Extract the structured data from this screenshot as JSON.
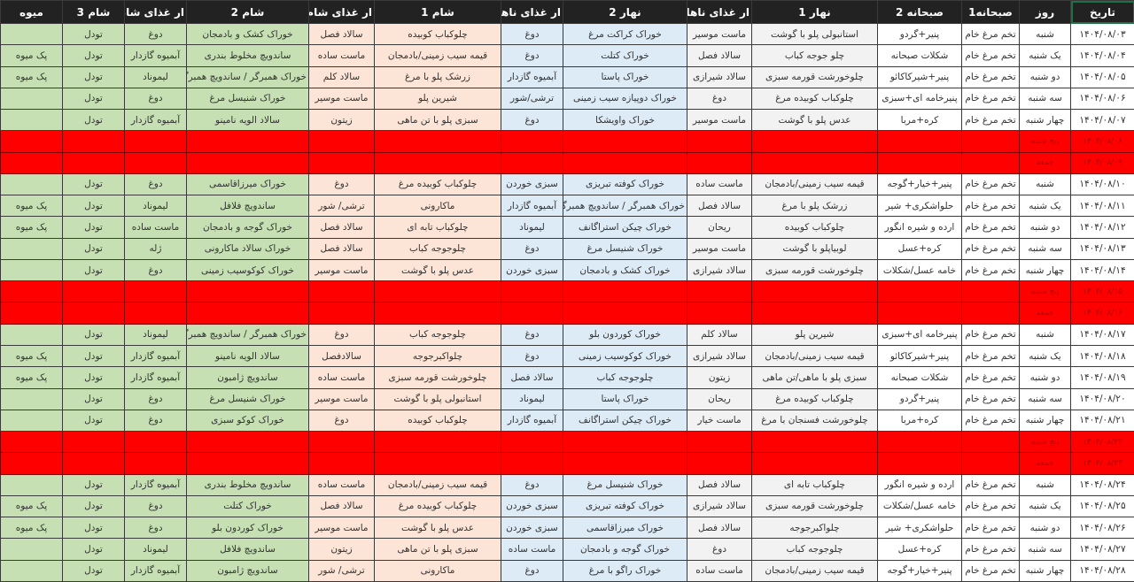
{
  "headers": [
    "تاریخ",
    "روز",
    "صبحانه1",
    "صبحانه 2",
    "نهار 1",
    "ار غذای ناهار",
    "نهار 2",
    "ار غذای ناهار",
    "شام 1",
    "ار غذای شام",
    "شام 2",
    "ار غذای شام",
    "شام 3",
    "میوه"
  ],
  "colors": {
    "header_bg": "#222222",
    "off_day": "#ff0000",
    "lunch1": "#f2f2f2",
    "lunch2": "#ddebf7",
    "dinner1": "#fce4d6",
    "dinner2": "#c6e0b4"
  },
  "rows": [
    [
      "۱۴۰۴/۰۸/۰۳",
      "شنبه",
      "تخم مرغ خام",
      "پنیر+گردو",
      "استانبولی پلو با گوشت",
      "ماست موسیر",
      "خوراک کراکت مرغ",
      "دوغ",
      "چلوکباب کوبیده",
      "سالاد فصل",
      "خوراک کشک و بادمجان",
      "دوغ",
      "تودل",
      ""
    ],
    [
      "۱۴۰۴/۰۸/۰۴",
      "یک شنبه",
      "تخم مرغ خام",
      "شکلات صبحانه",
      "چلو جوجه کباب",
      "سالاد فصل",
      "خوراک کتلت",
      "دوغ",
      "قیمه سیب زمینی/بادمجان",
      "ماست ساده",
      "ساندویچ مخلوط بندری",
      "آبمیوه گازدار",
      "تودل",
      "پک میوه"
    ],
    [
      "۱۴۰۴/۰۸/۰۵",
      "دو شنبه",
      "تخم مرغ خام",
      "پنیر+شیرکاکائو",
      "چلوخورشت قورمه سبزی",
      "سالاد شیرازی",
      "خوراک پاستا",
      "آبمیوه گازدار",
      "زرشک پلو با مرغ",
      "سالاد کلم",
      "خوراک همبرگر / ساندویچ همبرگر",
      "لیموناد",
      "تودل",
      "پک میوه"
    ],
    [
      "۱۴۰۴/۰۸/۰۶",
      "سه شنبه",
      "تخم مرغ خام",
      "پنیرخامه ای+سبزی",
      "چلوکباب کوبیده مرغ",
      "دوغ",
      "خوراک دوپیازه سیب زمینی",
      "ترشی/شور",
      "شیرین پلو",
      "ماست موسیر",
      "خوراک شنیسل مرغ",
      "دوغ",
      "تودل",
      ""
    ],
    [
      "۱۴۰۴/۰۸/۰۷",
      "چهار شنبه",
      "تخم مرغ خام",
      "کره+مربا",
      "عدس پلو با گوشت",
      "ماست موسیر",
      "خوراک واویشکا",
      "دوغ",
      "سبزی پلو با تن ماهی",
      "زیتون",
      "سالاد الویه نامینو",
      "آبمیوه گازدار",
      "تودل",
      ""
    ],
    [
      "۱۴۰۴/۰۸/۰۸",
      "پنج شنبه",
      "",
      "",
      "",
      "",
      "",
      "",
      "",
      "",
      "",
      "",
      "",
      ""
    ],
    [
      "۱۴۰۴/۰۸/۰۹",
      "جمعه",
      "",
      "",
      "",
      "",
      "",
      "",
      "",
      "",
      "",
      "",
      "",
      ""
    ],
    [
      "۱۴۰۴/۰۸/۱۰",
      "شنبه",
      "تخم مرغ خام",
      "پنیر+خیار+گوجه",
      "قیمه سیب زمینی/بادمجان",
      "ماست ساده",
      "خوراک کوفته تبریزی",
      "سبزی خوردن",
      "چلوکباب کوبیده مرغ",
      "دوغ",
      "خوراک میرزاقاسمی",
      "دوغ",
      "تودل",
      ""
    ],
    [
      "۱۴۰۴/۰۸/۱۱",
      "یک شنبه",
      "تخم مرغ خام",
      "حلواشکری+ شیر",
      "زرشک پلو با مرغ",
      "سالاد فصل",
      "خوراک همبرگر / ساندویچ همبرگر",
      "آبمیوه گازدار",
      "ماکارونی",
      "ترشی/ شور",
      "ساندویچ فلافل",
      "لیموناد",
      "تودل",
      "پک میوه"
    ],
    [
      "۱۴۰۴/۰۸/۱۲",
      "دو شنبه",
      "تخم مرغ خام",
      "ارده و شیره انگور",
      "چلوکباب کوبیده",
      "ریحان",
      "خوراک چیکن استراگانف",
      "لیموناد",
      "چلوکباب تابه ای",
      "سالاد فصل",
      "خوراک گوجه و بادمجان",
      "ماست ساده",
      "تودل",
      "پک میوه"
    ],
    [
      "۱۴۰۴/۰۸/۱۳",
      "سه شنبه",
      "تخم مرغ خام",
      "کره+عسل",
      "لوبیاپلو با گوشت",
      "ماست موسیر",
      "خوراک شنیسل مرغ",
      "دوغ",
      "چلوجوجه کباب",
      "سالاد فصل",
      "خوراک سالاد ماکارونی",
      "ژله",
      "تودل",
      ""
    ],
    [
      "۱۴۰۴/۰۸/۱۴",
      "چهار شنبه",
      "تخم مرغ خام",
      "خامه عسل/شکلات",
      "چلوخورشت قورمه سبزی",
      "سالاد شیرازی",
      "خوراک کشک و بادمجان",
      "سبزی خوردن",
      "عدس پلو با گوشت",
      "ماست موسیر",
      "خوراک کوکوسیب زمینی",
      "دوغ",
      "تودل",
      ""
    ],
    [
      "۱۴۰۴/۰۸/۱۵",
      "پنج شنبه",
      "",
      "",
      "",
      "",
      "",
      "",
      "",
      "",
      "",
      "",
      "",
      ""
    ],
    [
      "۱۴۰۴/۰۸/۱۶",
      "جمعه",
      "",
      "",
      "",
      "",
      "",
      "",
      "",
      "",
      "",
      "",
      "",
      ""
    ],
    [
      "۱۴۰۴/۰۸/۱۷",
      "شنبه",
      "تخم مرغ خام",
      "پنیرخامه ای+سبزی",
      "شیرین پلو",
      "سالاد کلم",
      "خوراک کوردون بلو",
      "دوغ",
      "چلوجوجه کباب",
      "دوغ",
      "خوراک همبرگر / ساندویچ همبرگر",
      "لیموناد",
      "تودل",
      ""
    ],
    [
      "۱۴۰۴/۰۸/۱۸",
      "یک شنبه",
      "تخم مرغ خام",
      "پنیر+شیرکاکائو",
      "قیمه سیب زمینی/بادمجان",
      "سالاد شیرازی",
      "خوراک کوکوسیب زمینی",
      "دوغ",
      "چلواکبرجوجه",
      "سالادفصل",
      "سالاد الویه نامینو",
      "آبمیوه گازدار",
      "تودل",
      "پک میوه"
    ],
    [
      "۱۴۰۴/۰۸/۱۹",
      "دو شنبه",
      "تخم مرغ خام",
      "شکلات صبحانه",
      "سبزی پلو با ماهی/تن ماهی",
      "زیتون",
      "چلوجوجه کباب",
      "سالاد فصل",
      "چلوخورشت قورمه سبزی",
      "ماست ساده",
      "ساندویچ ژامبون",
      "آبمیوه گازدار",
      "تودل",
      "پک میوه"
    ],
    [
      "۱۴۰۴/۰۸/۲۰",
      "سه شنبه",
      "تخم مرغ خام",
      "پنیر+گردو",
      "چلوکباب کوبیده مرغ",
      "ریحان",
      "خوراک پاستا",
      "لیموناد",
      "استانبولی پلو با گوشت",
      "ماست موسیر",
      "خوراک شنیسل مرغ",
      "دوغ",
      "تودل",
      ""
    ],
    [
      "۱۴۰۴/۰۸/۲۱",
      "چهار شنبه",
      "تخم مرغ خام",
      "کره+مربا",
      "چلوخورشت فسنجان با مرغ",
      "ماست خیار",
      "خوراک چیکن استراگانف",
      "آبمیوه گازدار",
      "چلوکباب کوبیده",
      "دوغ",
      "خوراک کوکو سبزی",
      "دوغ",
      "تودل",
      ""
    ],
    [
      "۱۴۰۴/۰۸/۲۲",
      "پنج شنبه",
      "",
      "",
      "",
      "",
      "",
      "",
      "",
      "",
      "",
      "",
      "",
      ""
    ],
    [
      "۱۴۰۴/۰۸/۲۳",
      "جمعه",
      "",
      "",
      "",
      "",
      "",
      "",
      "",
      "",
      "",
      "",
      "",
      ""
    ],
    [
      "۱۴۰۴/۰۸/۲۴",
      "شنبه",
      "تخم مرغ خام",
      "ارده و شیره انگور",
      "چلوکباب تابه ای",
      "سالاد فصل",
      "خوراک شنیسل مرغ",
      "دوغ",
      "قیمه سیب زمینی/بادمجان",
      "ماست ساده",
      "ساندویچ مخلوط بندری",
      "آبمیوه گازدار",
      "تودل",
      ""
    ],
    [
      "۱۴۰۴/۰۸/۲۵",
      "یک شنبه",
      "تخم مرغ خام",
      "خامه عسل/شکلات",
      "چلوخورشت قورمه سبزی",
      "سالاد شیرازی",
      "خوراک کوفته تبریزی",
      "سبزی خوردن",
      "چلوکباب کوبیده مرغ",
      "سالاد فصل",
      "خوراک کتلت",
      "دوغ",
      "تودل",
      "پک میوه"
    ],
    [
      "۱۴۰۴/۰۸/۲۶",
      "دو شنبه",
      "تخم مرغ خام",
      "حلواشکری+ شیر",
      "چلواکبرجوجه",
      "سالاد فصل",
      "خوراک میرزاقاسمی",
      "سبزی خوردن",
      "عدس پلو با گوشت",
      "ماست موسیر",
      "خوراک کوردون بلو",
      "دوغ",
      "تودل",
      "پک میوه"
    ],
    [
      "۱۴۰۴/۰۸/۲۷",
      "سه شنبه",
      "تخم مرغ خام",
      "کره+عسل",
      "چلوجوجه کباب",
      "دوغ",
      "خوراک گوجه و بادمجان",
      "ماست ساده",
      "سبزی پلو با تن ماهی",
      "زیتون",
      "ساندویچ فلافل",
      "لیموناد",
      "تودل",
      ""
    ],
    [
      "۱۴۰۴/۰۸/۲۸",
      "چهار شنبه",
      "تخم مرغ خام",
      "پنیر+خیار+گوجه",
      "قیمه سیب زمینی/بادمجان",
      "ماست ساده",
      "خوراک راگو با مرغ",
      "دوغ",
      "ماکارونی",
      "ترشی/ شور",
      "ساندویچ ژامبون",
      "آبمیوه گازدار",
      "تودل",
      ""
    ]
  ],
  "off_days": [
    "پنج شنبه",
    "جمعه"
  ]
}
